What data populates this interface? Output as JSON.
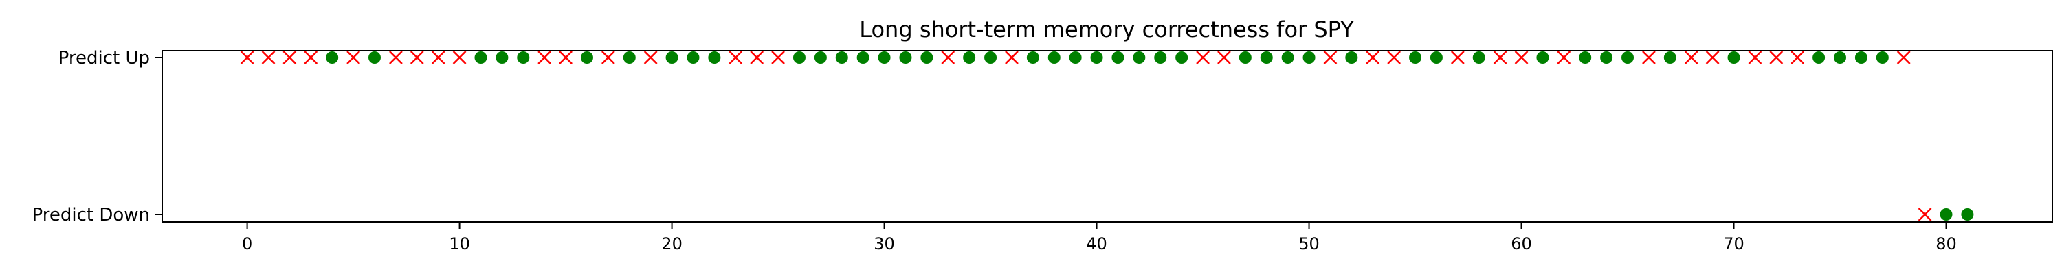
{
  "chart_data": {
    "type": "scatter",
    "title": "Long short-term memory correctness for SPY",
    "xlabel": "",
    "ylabel": "",
    "xlim": [
      -4,
      85
    ],
    "xticks": [
      0,
      10,
      20,
      30,
      40,
      50,
      60,
      70,
      80
    ],
    "ycategories": [
      "Predict Down",
      "Predict Up"
    ],
    "marker_colors": {
      "correct": "#008000",
      "incorrect": "#ff0000"
    },
    "markers": {
      "correct": "circle",
      "incorrect": "x"
    },
    "points": [
      {
        "x": 0,
        "y": "Predict Up",
        "correct": false
      },
      {
        "x": 1,
        "y": "Predict Up",
        "correct": false
      },
      {
        "x": 2,
        "y": "Predict Up",
        "correct": false
      },
      {
        "x": 3,
        "y": "Predict Up",
        "correct": false
      },
      {
        "x": 4,
        "y": "Predict Up",
        "correct": true
      },
      {
        "x": 5,
        "y": "Predict Up",
        "correct": false
      },
      {
        "x": 6,
        "y": "Predict Up",
        "correct": true
      },
      {
        "x": 7,
        "y": "Predict Up",
        "correct": false
      },
      {
        "x": 8,
        "y": "Predict Up",
        "correct": false
      },
      {
        "x": 9,
        "y": "Predict Up",
        "correct": false
      },
      {
        "x": 10,
        "y": "Predict Up",
        "correct": false
      },
      {
        "x": 11,
        "y": "Predict Up",
        "correct": true
      },
      {
        "x": 12,
        "y": "Predict Up",
        "correct": true
      },
      {
        "x": 13,
        "y": "Predict Up",
        "correct": true
      },
      {
        "x": 14,
        "y": "Predict Up",
        "correct": false
      },
      {
        "x": 15,
        "y": "Predict Up",
        "correct": false
      },
      {
        "x": 16,
        "y": "Predict Up",
        "correct": true
      },
      {
        "x": 17,
        "y": "Predict Up",
        "correct": false
      },
      {
        "x": 18,
        "y": "Predict Up",
        "correct": true
      },
      {
        "x": 19,
        "y": "Predict Up",
        "correct": false
      },
      {
        "x": 20,
        "y": "Predict Up",
        "correct": true
      },
      {
        "x": 21,
        "y": "Predict Up",
        "correct": true
      },
      {
        "x": 22,
        "y": "Predict Up",
        "correct": true
      },
      {
        "x": 23,
        "y": "Predict Up",
        "correct": false
      },
      {
        "x": 24,
        "y": "Predict Up",
        "correct": false
      },
      {
        "x": 25,
        "y": "Predict Up",
        "correct": false
      },
      {
        "x": 26,
        "y": "Predict Up",
        "correct": true
      },
      {
        "x": 27,
        "y": "Predict Up",
        "correct": true
      },
      {
        "x": 28,
        "y": "Predict Up",
        "correct": true
      },
      {
        "x": 29,
        "y": "Predict Up",
        "correct": true
      },
      {
        "x": 30,
        "y": "Predict Up",
        "correct": true
      },
      {
        "x": 31,
        "y": "Predict Up",
        "correct": true
      },
      {
        "x": 32,
        "y": "Predict Up",
        "correct": true
      },
      {
        "x": 33,
        "y": "Predict Up",
        "correct": false
      },
      {
        "x": 34,
        "y": "Predict Up",
        "correct": true
      },
      {
        "x": 35,
        "y": "Predict Up",
        "correct": true
      },
      {
        "x": 36,
        "y": "Predict Up",
        "correct": false
      },
      {
        "x": 37,
        "y": "Predict Up",
        "correct": true
      },
      {
        "x": 38,
        "y": "Predict Up",
        "correct": true
      },
      {
        "x": 39,
        "y": "Predict Up",
        "correct": true
      },
      {
        "x": 40,
        "y": "Predict Up",
        "correct": true
      },
      {
        "x": 41,
        "y": "Predict Up",
        "correct": true
      },
      {
        "x": 42,
        "y": "Predict Up",
        "correct": true
      },
      {
        "x": 43,
        "y": "Predict Up",
        "correct": true
      },
      {
        "x": 44,
        "y": "Predict Up",
        "correct": true
      },
      {
        "x": 45,
        "y": "Predict Up",
        "correct": false
      },
      {
        "x": 46,
        "y": "Predict Up",
        "correct": false
      },
      {
        "x": 47,
        "y": "Predict Up",
        "correct": true
      },
      {
        "x": 48,
        "y": "Predict Up",
        "correct": true
      },
      {
        "x": 49,
        "y": "Predict Up",
        "correct": true
      },
      {
        "x": 50,
        "y": "Predict Up",
        "correct": true
      },
      {
        "x": 51,
        "y": "Predict Up",
        "correct": false
      },
      {
        "x": 52,
        "y": "Predict Up",
        "correct": true
      },
      {
        "x": 53,
        "y": "Predict Up",
        "correct": false
      },
      {
        "x": 54,
        "y": "Predict Up",
        "correct": false
      },
      {
        "x": 55,
        "y": "Predict Up",
        "correct": true
      },
      {
        "x": 56,
        "y": "Predict Up",
        "correct": true
      },
      {
        "x": 57,
        "y": "Predict Up",
        "correct": false
      },
      {
        "x": 58,
        "y": "Predict Up",
        "correct": true
      },
      {
        "x": 59,
        "y": "Predict Up",
        "correct": false
      },
      {
        "x": 60,
        "y": "Predict Up",
        "correct": false
      },
      {
        "x": 61,
        "y": "Predict Up",
        "correct": true
      },
      {
        "x": 62,
        "y": "Predict Up",
        "correct": false
      },
      {
        "x": 63,
        "y": "Predict Up",
        "correct": true
      },
      {
        "x": 64,
        "y": "Predict Up",
        "correct": true
      },
      {
        "x": 65,
        "y": "Predict Up",
        "correct": true
      },
      {
        "x": 66,
        "y": "Predict Up",
        "correct": false
      },
      {
        "x": 67,
        "y": "Predict Up",
        "correct": true
      },
      {
        "x": 68,
        "y": "Predict Up",
        "correct": false
      },
      {
        "x": 69,
        "y": "Predict Up",
        "correct": false
      },
      {
        "x": 70,
        "y": "Predict Up",
        "correct": true
      },
      {
        "x": 71,
        "y": "Predict Up",
        "correct": false
      },
      {
        "x": 72,
        "y": "Predict Up",
        "correct": false
      },
      {
        "x": 73,
        "y": "Predict Up",
        "correct": false
      },
      {
        "x": 74,
        "y": "Predict Up",
        "correct": true
      },
      {
        "x": 75,
        "y": "Predict Up",
        "correct": true
      },
      {
        "x": 76,
        "y": "Predict Up",
        "correct": true
      },
      {
        "x": 77,
        "y": "Predict Up",
        "correct": true
      },
      {
        "x": 78,
        "y": "Predict Up",
        "correct": false
      },
      {
        "x": 79,
        "y": "Predict Down",
        "correct": false
      },
      {
        "x": 80,
        "y": "Predict Down",
        "correct": true
      },
      {
        "x": 81,
        "y": "Predict Down",
        "correct": true
      }
    ]
  }
}
